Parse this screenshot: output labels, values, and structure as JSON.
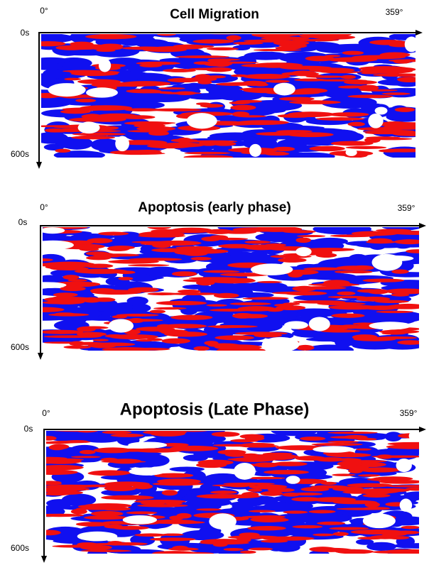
{
  "panels": [
    {
      "title": "Cell Migration",
      "x_start": "0°",
      "x_end": "359°",
      "y_start": "0s",
      "y_end": "600s"
    },
    {
      "title": "Apoptosis (early phase)",
      "x_start": "0°",
      "x_end": "359°",
      "y_start": "0s",
      "y_end": "600s"
    },
    {
      "title": "Apoptosis (Late Phase)",
      "x_start": "0°",
      "x_end": "359°",
      "y_start": "0s",
      "y_end": "600s"
    }
  ]
}
